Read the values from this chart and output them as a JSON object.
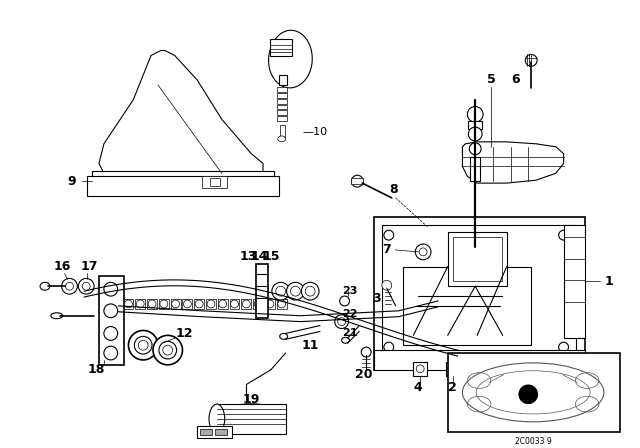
{
  "bg_color": "#ffffff",
  "line_color": "#000000",
  "fig_width": 6.4,
  "fig_height": 4.48,
  "dpi": 100,
  "watermark": "2C0033 9"
}
